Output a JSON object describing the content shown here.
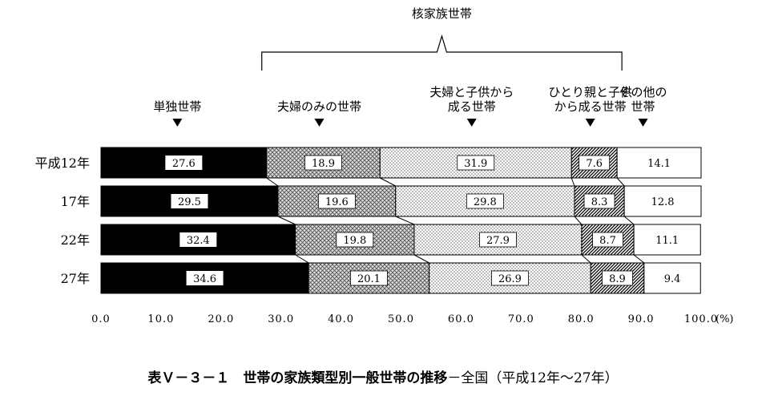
{
  "chart_data": {
    "type": "bar",
    "orientation": "horizontal",
    "stacked": true,
    "caption_main": "表Ｖ－３－１　世帯の家族類型別一般世帯の推移",
    "caption_sub": "－全国（平成12年～27年）",
    "group_label": "核家族世帯",
    "categories": [
      "平成12年",
      "17年",
      "22年",
      "27年"
    ],
    "series": [
      {
        "name": "単独世帯",
        "values": [
          27.6,
          29.5,
          32.4,
          34.6
        ]
      },
      {
        "name": "夫婦のみの世帯",
        "values": [
          18.9,
          19.6,
          19.8,
          20.1
        ]
      },
      {
        "name": "夫婦と子供から成る世帯",
        "values": [
          31.9,
          29.8,
          27.9,
          26.9
        ]
      },
      {
        "name": "ひとり親と子供から成る世帯",
        "values": [
          7.6,
          8.3,
          8.7,
          8.9
        ]
      },
      {
        "name": "その他の世帯",
        "values": [
          14.1,
          12.8,
          11.1,
          9.4
        ]
      }
    ],
    "series_label_lines": [
      [
        "単独世帯"
      ],
      [
        "夫婦のみの世帯"
      ],
      [
        "夫婦と子供から",
        "成る世帯"
      ],
      [
        "ひとり親と子供",
        "から成る世帯"
      ],
      [
        "その他の",
        "世帯"
      ]
    ],
    "value_labels": [
      [
        "27.6",
        "18.9",
        "31.9",
        "7.6",
        "14.1"
      ],
      [
        "29.5",
        "19.6",
        "29.8",
        "8.3",
        "12.8"
      ],
      [
        "32.4",
        "19.8",
        "27.9",
        "8.7",
        "11.1"
      ],
      [
        "34.6",
        "20.1",
        "26.9",
        "8.9",
        "9.4"
      ]
    ],
    "xlim": [
      0,
      100
    ],
    "xticks": [
      0,
      10,
      20,
      30,
      40,
      50,
      60,
      70,
      80,
      90,
      100
    ],
    "xtick_labels": [
      "0.0",
      "10.0",
      "20.0",
      "30.0",
      "40.0",
      "50.0",
      "60.0",
      "70.0",
      "80.0",
      "90.0",
      "100.0"
    ],
    "x_unit": "(%)",
    "grid": false,
    "legend": "above-bars",
    "fills": [
      "solid-black",
      "crosshatch",
      "fine-dots",
      "diagonal-stripes",
      "white"
    ],
    "colors": {
      "ink": "#000000",
      "background": "#ffffff"
    }
  }
}
